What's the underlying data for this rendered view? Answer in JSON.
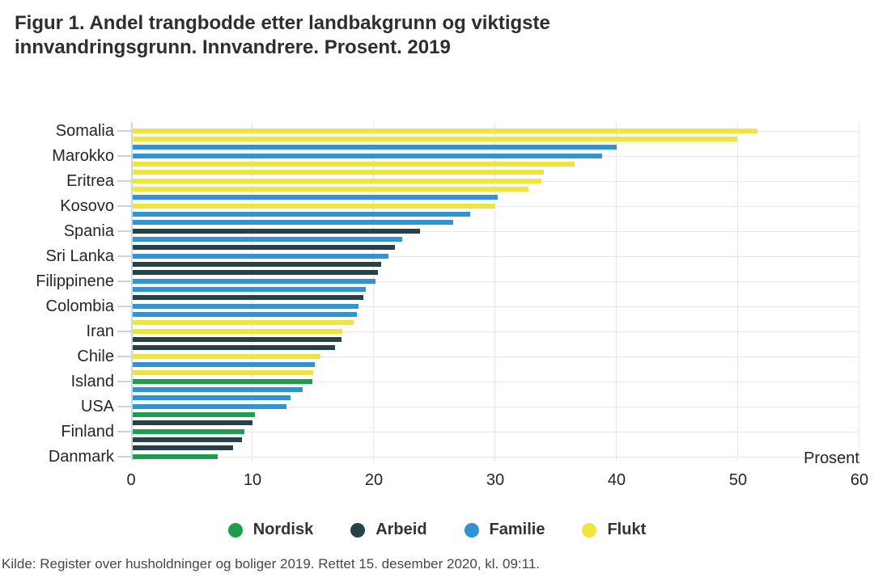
{
  "figure": {
    "title_lines": [
      "Figur 1. Andel trangbodde etter landbakgrunn og viktigste",
      "innvandringsgrunn. Innvandrere. Prosent. 2019"
    ],
    "source": "Kilde: Register over husholdninger og boliger 2019. Rettet 15. desember 2020, kl. 09:11."
  },
  "chart_data": {
    "type": "bar",
    "orientation": "horizontal",
    "title": "Figur 1. Andel trangbodde etter landbakgrunn og viktigste innvandringsgrunn. Innvandrere. Prosent. 2019",
    "xlabel": "Prosent",
    "ylabel": "",
    "xlim": [
      0,
      60
    ],
    "xticks": [
      0,
      10,
      20,
      30,
      40,
      50,
      60
    ],
    "grid": true,
    "legend_position": "bottom",
    "ylabel_interval": 3,
    "legend": [
      {
        "label": "Nordisk",
        "color": "#1f9d4c"
      },
      {
        "label": "Arbeid",
        "color": "#274247"
      },
      {
        "label": "Familie",
        "color": "#3193d1"
      },
      {
        "label": "Flukt",
        "color": "#eee63e"
      }
    ],
    "bars": [
      {
        "label": "Somalia",
        "value": 51.6,
        "group": "Flukt"
      },
      {
        "label": "",
        "value": 49.9,
        "group": "Flukt"
      },
      {
        "label": "",
        "value": 40.0,
        "group": "Familie"
      },
      {
        "label": "Marokko",
        "value": 38.8,
        "group": "Familie"
      },
      {
        "label": "",
        "value": 36.5,
        "group": "Flukt"
      },
      {
        "label": "",
        "value": 34.0,
        "group": "Flukt"
      },
      {
        "label": "Eritrea",
        "value": 33.8,
        "group": "Flukt"
      },
      {
        "label": "",
        "value": 32.7,
        "group": "Flukt"
      },
      {
        "label": "",
        "value": 30.2,
        "group": "Familie"
      },
      {
        "label": "Kosovo",
        "value": 30.0,
        "group": "Flukt"
      },
      {
        "label": "",
        "value": 27.9,
        "group": "Familie"
      },
      {
        "label": "",
        "value": 26.5,
        "group": "Familie"
      },
      {
        "label": "Spania",
        "value": 23.8,
        "group": "Arbeid"
      },
      {
        "label": "",
        "value": 22.3,
        "group": "Familie"
      },
      {
        "label": "",
        "value": 21.7,
        "group": "Arbeid"
      },
      {
        "label": "Sri Lanka",
        "value": 21.2,
        "group": "Familie"
      },
      {
        "label": "",
        "value": 20.6,
        "group": "Arbeid"
      },
      {
        "label": "",
        "value": 20.3,
        "group": "Arbeid"
      },
      {
        "label": "Filippinene",
        "value": 20.1,
        "group": "Familie"
      },
      {
        "label": "",
        "value": 19.3,
        "group": "Familie"
      },
      {
        "label": "",
        "value": 19.1,
        "group": "Arbeid"
      },
      {
        "label": "Colombia",
        "value": 18.7,
        "group": "Familie"
      },
      {
        "label": "",
        "value": 18.6,
        "group": "Familie"
      },
      {
        "label": "",
        "value": 18.3,
        "group": "Flukt"
      },
      {
        "label": "Iran",
        "value": 17.4,
        "group": "Flukt"
      },
      {
        "label": "",
        "value": 17.3,
        "group": "Arbeid"
      },
      {
        "label": "",
        "value": 16.8,
        "group": "Arbeid"
      },
      {
        "label": "Chile",
        "value": 15.6,
        "group": "Flukt"
      },
      {
        "label": "",
        "value": 15.1,
        "group": "Familie"
      },
      {
        "label": "",
        "value": 15.0,
        "group": "Flukt"
      },
      {
        "label": "Island",
        "value": 14.9,
        "group": "Nordisk"
      },
      {
        "label": "",
        "value": 14.1,
        "group": "Familie"
      },
      {
        "label": "",
        "value": 13.1,
        "group": "Familie"
      },
      {
        "label": "USA",
        "value": 12.8,
        "group": "Familie"
      },
      {
        "label": "",
        "value": 10.2,
        "group": "Nordisk"
      },
      {
        "label": "",
        "value": 10.0,
        "group": "Arbeid"
      },
      {
        "label": "Finland",
        "value": 9.3,
        "group": "Nordisk"
      },
      {
        "label": "",
        "value": 9.1,
        "group": "Arbeid"
      },
      {
        "label": "",
        "value": 8.4,
        "group": "Arbeid"
      },
      {
        "label": "Danmark",
        "value": 7.1,
        "group": "Nordisk"
      }
    ]
  }
}
